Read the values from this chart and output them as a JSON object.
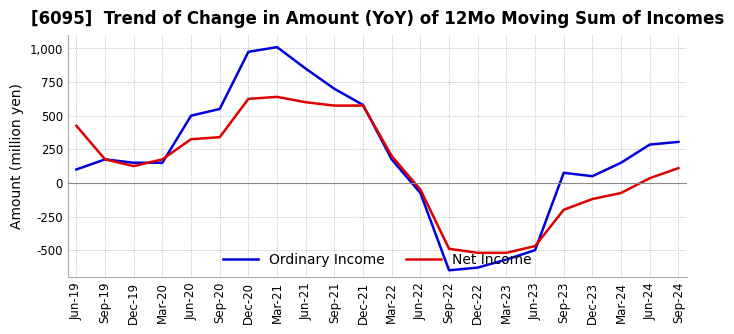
{
  "title": "[6095]  Trend of Change in Amount (YoY) of 12Mo Moving Sum of Incomes",
  "ylabel": "Amount (million yen)",
  "x_labels": [
    "Jun-19",
    "Sep-19",
    "Dec-19",
    "Mar-20",
    "Jun-20",
    "Sep-20",
    "Dec-20",
    "Mar-21",
    "Jun-21",
    "Sep-21",
    "Dec-21",
    "Mar-22",
    "Jun-22",
    "Sep-22",
    "Dec-22",
    "Mar-23",
    "Jun-23",
    "Sep-23",
    "Dec-23",
    "Mar-24",
    "Jun-24",
    "Sep-24"
  ],
  "ordinary_income": [
    100,
    175,
    150,
    150,
    500,
    550,
    975,
    1010,
    850,
    700,
    580,
    175,
    -75,
    -650,
    -630,
    -570,
    -500,
    75,
    50,
    150,
    285,
    305
  ],
  "net_income": [
    425,
    175,
    125,
    175,
    325,
    340,
    625,
    640,
    600,
    575,
    575,
    200,
    -50,
    -490,
    -520,
    -520,
    -470,
    -200,
    -120,
    -75,
    35,
    110
  ],
  "ordinary_color": "#0000dd",
  "net_color": "#dd0000",
  "ylim": [
    -700,
    1100
  ],
  "yticks": [
    -500,
    -250,
    0,
    250,
    500,
    750,
    1000
  ],
  "grid_color": "#aaaaaa",
  "background_color": "#ffffff",
  "title_fontsize": 12,
  "label_fontsize": 10,
  "tick_fontsize": 8.5
}
